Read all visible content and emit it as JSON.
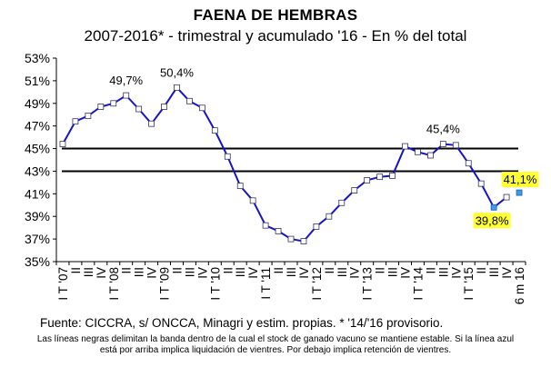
{
  "chart_data": {
    "type": "line",
    "title": "FAENA DE HEMBRAS",
    "subtitle": "2007-2016* - trimestral y acumulado '16 - En % del total",
    "ylim": [
      35,
      53
    ],
    "yticks": [
      "35%",
      "37%",
      "39%",
      "41%",
      "43%",
      "45%",
      "47%",
      "49%",
      "51%",
      "53%"
    ],
    "categories": [
      "I T '07",
      "II",
      "III",
      "IV",
      "I T '08",
      "II",
      "III",
      "IV",
      "I T '09",
      "II",
      "III",
      "IV",
      "I T '10",
      "II",
      "III",
      "IV",
      "I T '11",
      "II",
      "III",
      "IV",
      "I T '12",
      "II",
      "III",
      "IV",
      "I T '13",
      "II",
      "III",
      "IV",
      "I T '14",
      "II",
      "III",
      "IV",
      "I T '15",
      "II",
      "III",
      "IV",
      "6 m 16"
    ],
    "x_tick_labels": [
      "I T '07",
      "II",
      "III",
      "IV",
      "I T '08",
      "II",
      "III",
      "IV",
      "I T '09",
      "II",
      "III",
      "IV",
      "I T '10",
      "II",
      "III",
      "IV",
      "I T '11",
      "II",
      "III",
      "IV",
      "I T '12",
      "II",
      "III",
      "IV",
      "I T '13",
      "II",
      "III",
      "IV",
      "I T '14",
      "II",
      "III",
      "IV",
      "I T '15",
      "II",
      "III",
      "IV",
      "6 m 16"
    ],
    "series": [
      {
        "values": [
          45.4,
          47.4,
          47.9,
          48.7,
          49.0,
          49.7,
          48.5,
          47.2,
          48.7,
          50.4,
          49.2,
          48.6,
          46.6,
          44.3,
          41.7,
          40.4,
          38.2,
          37.7,
          37.0,
          36.8,
          38.1,
          39.0,
          40.2,
          41.3,
          42.2,
          42.5,
          42.6,
          45.2,
          44.7,
          44.4,
          45.4,
          45.3,
          43.7,
          41.9,
          39.8,
          40.7,
          null
        ],
        "color": "#1515c8"
      }
    ],
    "highlight_points": [
      {
        "index": 34,
        "value": 39.8,
        "color": "#3f9ae8"
      },
      {
        "index": 36,
        "value": 41.1,
        "color": "#3f9ae8"
      }
    ],
    "band_lines": [
      43,
      45
    ],
    "annotations": [
      {
        "text": "49,7%",
        "index": 5,
        "value": 49.7
      },
      {
        "text": "50,4%",
        "index": 9,
        "value": 50.4
      },
      {
        "text": "45,4%",
        "index": 30,
        "value": 45.4
      },
      {
        "text": "39,8%",
        "index": 34,
        "value": 39.8,
        "highlight": "#ffff33"
      },
      {
        "text": "41,1%",
        "index": 36,
        "value": 41.1,
        "highlight": "#ffff33"
      }
    ],
    "grid": false
  },
  "source": "Fuente: CICCRA, s/ ONCCA, Minagri y estim. propias. * '14/'16 provisorio.",
  "note_line1": "Las líneas negras delimitan la banda dentro de la cual el stock de ganado vacuno se mantiene estable. Si la línea azul",
  "note_line2": "está por arriba implica liquidación de vientres. Por debajo implica retención de vientres."
}
